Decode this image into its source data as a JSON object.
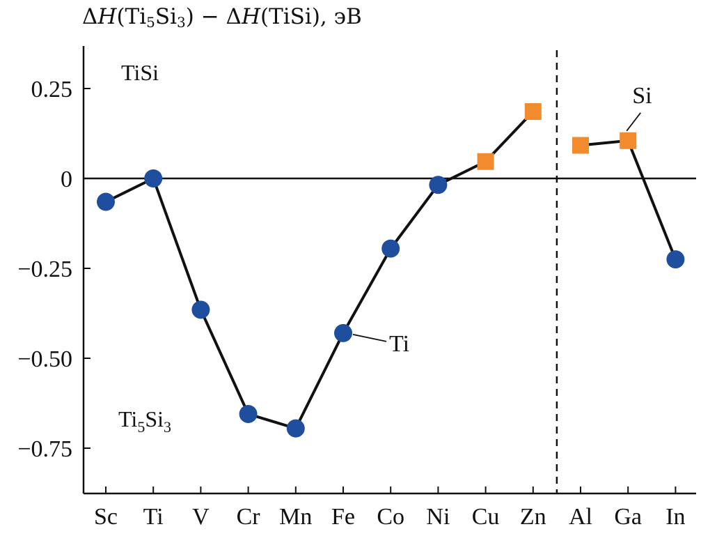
{
  "chart_data": {
    "type": "line",
    "title_parts": {
      "delta1": "Δ",
      "H1": "H",
      "open1": "(Ti",
      "sub1": "5",
      "mid1": "Si",
      "sub2": "3",
      "close1": ")",
      "minus": " − ",
      "delta2": "Δ",
      "H2": "H",
      "open2": "(TiSi)",
      "unit": ", эВ"
    },
    "categories": [
      "Sc",
      "Ti",
      "V",
      "Cr",
      "Mn",
      "Fe",
      "Co",
      "Ni",
      "Cu",
      "Zn",
      "Al",
      "Ga",
      "In"
    ],
    "yticks": [
      {
        "value": 0.25,
        "label": "0.25"
      },
      {
        "value": 0,
        "label": "0"
      },
      {
        "value": -0.25,
        "label": "−0.25"
      },
      {
        "value": -0.5,
        "label": "−0.50"
      },
      {
        "value": -0.75,
        "label": "−0.75"
      }
    ],
    "ylim": [
      -0.88,
      0.36
    ],
    "series": [
      {
        "segment": "transition-metals",
        "points": [
          {
            "x": "Sc",
            "y": -0.065,
            "site": "Ti"
          },
          {
            "x": "Ti",
            "y": 0.0,
            "site": "Ti"
          },
          {
            "x": "V",
            "y": -0.365,
            "site": "Ti"
          },
          {
            "x": "Cr",
            "y": -0.655,
            "site": "Ti"
          },
          {
            "x": "Mn",
            "y": -0.695,
            "site": "Ti"
          },
          {
            "x": "Fe",
            "y": -0.43,
            "site": "Ti"
          },
          {
            "x": "Co",
            "y": -0.195,
            "site": "Ti"
          },
          {
            "x": "Ni",
            "y": -0.018,
            "site": "Ti"
          },
          {
            "x": "Cu",
            "y": 0.047,
            "site": "Si"
          },
          {
            "x": "Zn",
            "y": 0.186,
            "site": "Si"
          }
        ]
      },
      {
        "segment": "sp-elements",
        "points": [
          {
            "x": "Al",
            "y": 0.092,
            "site": "Si"
          },
          {
            "x": "Ga",
            "y": 0.105,
            "site": "Si"
          },
          {
            "x": "In",
            "y": -0.225,
            "site": "Ti"
          }
        ]
      }
    ],
    "markers": {
      "Ti": {
        "shape": "circle",
        "color": "#1f4e9e"
      },
      "Si": {
        "shape": "square",
        "color": "#f28a2e"
      }
    },
    "region_labels": {
      "upper": "TiSi",
      "lower_base1": "Ti",
      "lower_sub1": "5",
      "lower_base2": "Si",
      "lower_sub2": "3"
    },
    "annotations": [
      {
        "text": "Ti",
        "points_to": "Fe"
      },
      {
        "text": "Si",
        "points_to": "Ga"
      }
    ],
    "zero_line": true,
    "divider_between": [
      "Zn",
      "Al"
    ],
    "grid": false
  }
}
